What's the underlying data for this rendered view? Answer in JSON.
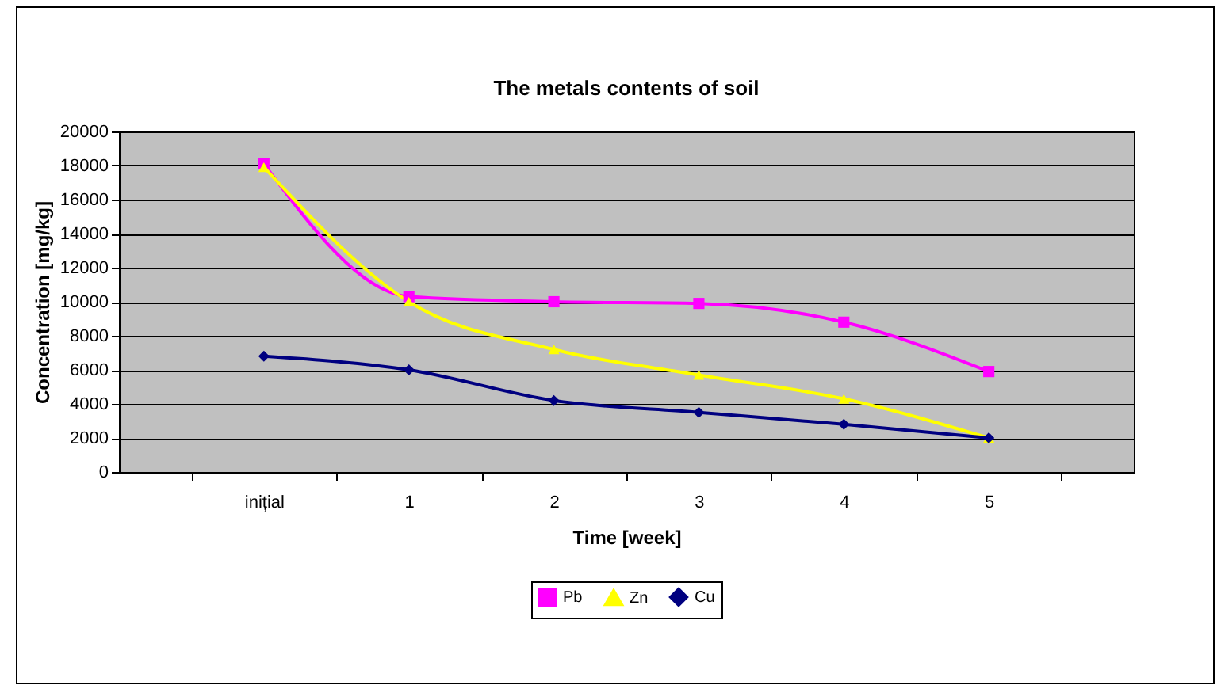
{
  "chart_data": {
    "type": "line",
    "title": "The metals  contents of soil",
    "xlabel": "Time [week]",
    "ylabel": "Concentration [mg/kg]",
    "categories": [
      "inițial",
      "1",
      "2",
      "3",
      "4",
      "5"
    ],
    "series": [
      {
        "name": "Pb",
        "color": "#ff00ff",
        "marker": "square",
        "values": [
          18100,
          10300,
          10000,
          9900,
          8800,
          5900
        ]
      },
      {
        "name": "Zn",
        "color": "#ffff00",
        "marker": "triangle",
        "values": [
          17900,
          10000,
          7200,
          5700,
          4300,
          2000
        ]
      },
      {
        "name": "Cu",
        "color": "#000080",
        "marker": "diamond",
        "values": [
          6800,
          6000,
          4200,
          3500,
          2800,
          2000
        ]
      }
    ],
    "ylim": [
      0,
      20000
    ],
    "yticks": [
      0,
      2000,
      4000,
      6000,
      8000,
      10000,
      12000,
      14000,
      16000,
      18000,
      20000
    ],
    "grid": "y",
    "legend": "bottom",
    "line_style": "solid"
  }
}
